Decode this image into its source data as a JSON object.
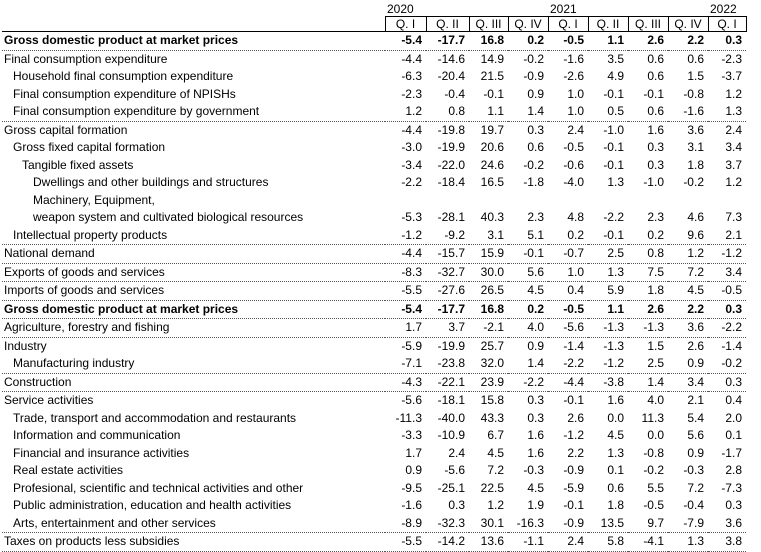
{
  "years": [
    "2020",
    "2021",
    "2022"
  ],
  "quarters": [
    "Q. I",
    "Q. II",
    "Q. III",
    "Q. IV",
    "Q. I",
    "Q. II",
    "Q. III",
    "Q. IV",
    "Q. I"
  ],
  "rows": [
    {
      "label": "Gross domestic product at market prices",
      "indent": 0,
      "bold": true,
      "top": true,
      "sep": true,
      "values": [
        "-5.4",
        "-17.7",
        "16.8",
        "0.2",
        "-0.5",
        "1.1",
        "2.6",
        "2.2",
        "0.3"
      ]
    },
    {
      "label": "Final consumption expenditure",
      "indent": 0,
      "values": [
        "-4.4",
        "-14.6",
        "14.9",
        "-0.2",
        "-1.6",
        "3.5",
        "0.6",
        "0.6",
        "-2.3"
      ]
    },
    {
      "label": "Household final consumption expenditure",
      "indent": 1,
      "values": [
        "-6.3",
        "-20.4",
        "21.5",
        "-0.9",
        "-2.6",
        "4.9",
        "0.6",
        "1.5",
        "-3.7"
      ]
    },
    {
      "label": "Final consumption expenditure of NPISHs",
      "indent": 1,
      "values": [
        "-2.3",
        "-0.4",
        "-0.1",
        "0.9",
        "1.0",
        "-0.1",
        "-0.1",
        "-0.8",
        "1.2"
      ]
    },
    {
      "label": "Final consumption expenditure by government",
      "indent": 1,
      "sep": true,
      "values": [
        "1.2",
        "0.8",
        "1.1",
        "1.4",
        "1.0",
        "0.5",
        "0.6",
        "-1.6",
        "1.3"
      ]
    },
    {
      "label": "Gross capital formation",
      "indent": 0,
      "values": [
        "-4.4",
        "-19.8",
        "19.7",
        "0.3",
        "2.4",
        "-1.0",
        "1.6",
        "3.6",
        "2.4"
      ]
    },
    {
      "label": "Gross fixed capital formation",
      "indent": 1,
      "values": [
        "-3.0",
        "-19.9",
        "20.6",
        "0.6",
        "-0.5",
        "-0.1",
        "0.3",
        "3.1",
        "3.4"
      ]
    },
    {
      "label": "Tangible fixed assets",
      "indent": 2,
      "values": [
        "-3.4",
        "-22.0",
        "24.6",
        "-0.2",
        "-0.6",
        "-0.1",
        "0.3",
        "1.8",
        "3.7"
      ]
    },
    {
      "label": "Dwellings and other buildings and structures",
      "indent": 3,
      "values": [
        "-2.2",
        "-18.4",
        "16.5",
        "-1.8",
        "-4.0",
        "1.3",
        "-1.0",
        "-0.2",
        "1.2"
      ]
    },
    {
      "label": "Machinery, Equipment,",
      "indent": 3,
      "values": [
        "",
        "",
        "",
        "",
        "",
        "",
        "",
        "",
        ""
      ]
    },
    {
      "label": "weapon system and cultivated biological resources",
      "indent": 3,
      "values": [
        "-5.3",
        "-28.1",
        "40.3",
        "2.3",
        "4.8",
        "-2.2",
        "2.3",
        "4.6",
        "7.3"
      ]
    },
    {
      "label": "Intellectual property products",
      "indent": 1,
      "sep": true,
      "values": [
        "-1.2",
        "-9.2",
        "3.1",
        "5.1",
        "0.2",
        "-0.1",
        "0.2",
        "9.6",
        "2.1"
      ]
    },
    {
      "label": "National demand",
      "indent": 0,
      "sep": true,
      "values": [
        "-4.4",
        "-15.7",
        "15.9",
        "-0.1",
        "-0.7",
        "2.5",
        "0.8",
        "1.2",
        "-1.2"
      ]
    },
    {
      "label": "Exports of goods and services",
      "indent": 0,
      "sep": true,
      "values": [
        "-8.3",
        "-32.7",
        "30.0",
        "5.6",
        "1.0",
        "1.3",
        "7.5",
        "7.2",
        "3.4"
      ]
    },
    {
      "label": "Imports of goods and services",
      "indent": 0,
      "sep": true,
      "values": [
        "-5.5",
        "-27.6",
        "26.5",
        "4.5",
        "0.4",
        "5.9",
        "1.8",
        "4.5",
        "-0.5"
      ]
    },
    {
      "label": "Gross domestic product at market prices",
      "indent": 0,
      "bold": true,
      "sep": true,
      "values": [
        "-5.4",
        "-17.7",
        "16.8",
        "0.2",
        "-0.5",
        "1.1",
        "2.6",
        "2.2",
        "0.3"
      ]
    },
    {
      "label": "Agriculture, forestry and fishing",
      "indent": 0,
      "sep": true,
      "values": [
        "1.7",
        "3.7",
        "-2.1",
        "4.0",
        "-5.6",
        "-1.3",
        "-1.3",
        "3.6",
        "-2.2"
      ]
    },
    {
      "label": "Industry",
      "indent": 0,
      "values": [
        "-5.9",
        "-19.9",
        "25.7",
        "0.9",
        "-1.4",
        "-1.3",
        "1.5",
        "2.6",
        "-1.4"
      ]
    },
    {
      "label": "Manufacturing industry",
      "indent": 1,
      "sep": true,
      "values": [
        "-7.1",
        "-23.8",
        "32.0",
        "1.4",
        "-2.2",
        "-1.2",
        "2.5",
        "0.9",
        "-0.2"
      ]
    },
    {
      "label": "Construction",
      "indent": 0,
      "sep": true,
      "values": [
        "-4.3",
        "-22.1",
        "23.9",
        "-2.2",
        "-4.4",
        "-3.8",
        "1.4",
        "3.4",
        "0.3"
      ]
    },
    {
      "label": "Service activities",
      "indent": 0,
      "values": [
        "-5.6",
        "-18.1",
        "15.8",
        "0.3",
        "-0.1",
        "1.6",
        "4.0",
        "2.1",
        "0.4"
      ]
    },
    {
      "label": "Trade, transport and accommodation and restaurants",
      "indent": 1,
      "values": [
        "-11.3",
        "-40.0",
        "43.3",
        "0.3",
        "2.6",
        "0.0",
        "11.3",
        "5.4",
        "2.0"
      ]
    },
    {
      "label": "Information and communication",
      "indent": 1,
      "values": [
        "-3.3",
        "-10.9",
        "6.7",
        "1.6",
        "-1.2",
        "4.5",
        "0.0",
        "5.6",
        "0.1"
      ]
    },
    {
      "label": "Financial and insurance activities",
      "indent": 1,
      "values": [
        "1.7",
        "2.4",
        "4.5",
        "1.6",
        "2.2",
        "1.3",
        "-0.8",
        "0.9",
        "-1.7"
      ]
    },
    {
      "label": "Real estate activities",
      "indent": 1,
      "values": [
        "0.9",
        "-5.6",
        "7.2",
        "-0.3",
        "-0.9",
        "0.1",
        "-0.2",
        "-0.3",
        "2.8"
      ]
    },
    {
      "label": "Profesional, scientific and technical activities and other",
      "indent": 1,
      "values": [
        "-9.5",
        "-25.1",
        "22.5",
        "4.5",
        "-5.9",
        "0.6",
        "5.5",
        "7.2",
        "-7.3"
      ]
    },
    {
      "label": "Public administration, education and health activities",
      "indent": 1,
      "values": [
        "-1.6",
        "0.3",
        "1.2",
        "1.9",
        "-0.1",
        "1.8",
        "-0.5",
        "-0.4",
        "0.3"
      ]
    },
    {
      "label": "Arts, entertainment and other services",
      "indent": 1,
      "sep": true,
      "values": [
        "-8.9",
        "-32.3",
        "30.1",
        "-16.3",
        "-0.9",
        "13.5",
        "9.7",
        "-7.9",
        "3.6"
      ]
    },
    {
      "label": "Taxes on products less subsidies",
      "indent": 0,
      "sep": true,
      "values": [
        "-5.5",
        "-14.2",
        "13.6",
        "-1.1",
        "2.4",
        "5.8",
        "-4.1",
        "1.3",
        "3.8"
      ]
    }
  ]
}
